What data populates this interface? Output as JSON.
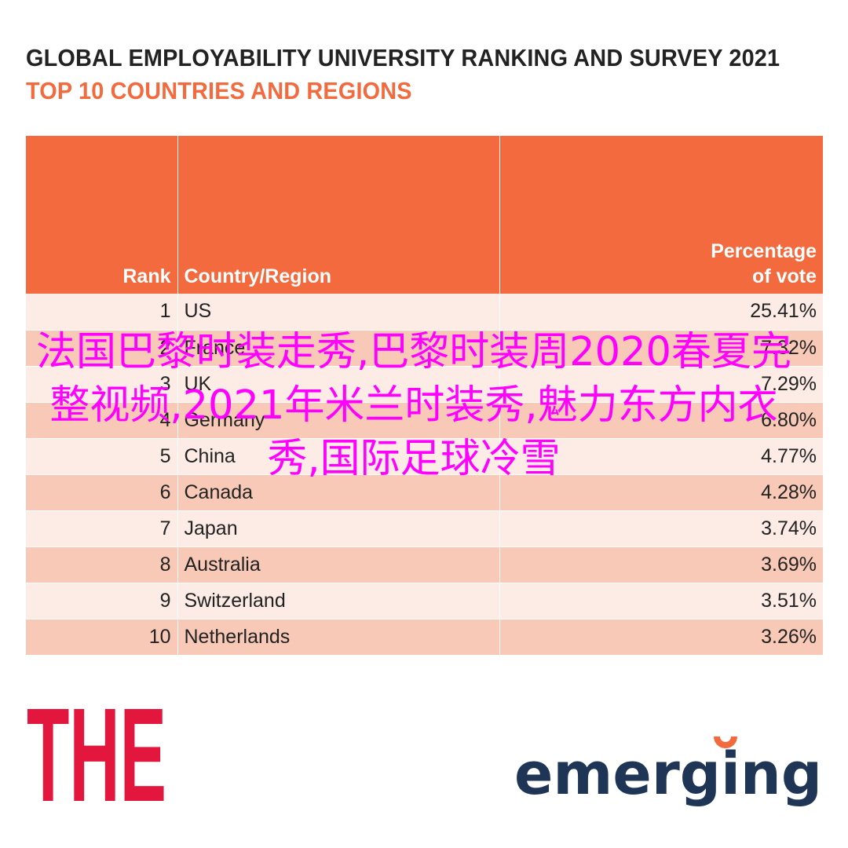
{
  "chart_data": {
    "type": "table",
    "title": "GLOBAL EMPLOYABILITY UNIVERSITY RANKING AND SURVEY 2021",
    "subtitle": "TOP 10 COUNTRIES AND REGIONS",
    "columns": [
      "Rank",
      "Country/Region",
      "Percentage of vote"
    ],
    "rows": [
      {
        "rank": "1",
        "country": "US",
        "pct": "25.41%"
      },
      {
        "rank": "2",
        "country": "France",
        "pct": "7.32%"
      },
      {
        "rank": "3",
        "country": "UK",
        "pct": "7.29%"
      },
      {
        "rank": "4",
        "country": "Germany",
        "pct": "6.80%"
      },
      {
        "rank": "5",
        "country": "China",
        "pct": "4.77%"
      },
      {
        "rank": "6",
        "country": "Canada",
        "pct": "4.28%"
      },
      {
        "rank": "7",
        "country": "Japan",
        "pct": "3.74%"
      },
      {
        "rank": "8",
        "country": "Australia",
        "pct": "3.69%"
      },
      {
        "rank": "9",
        "country": "Switzerland",
        "pct": "3.51%"
      },
      {
        "rank": "10",
        "country": "Netherlands",
        "pct": "3.26%"
      }
    ]
  },
  "overlay_text": "法国巴黎时装走秀,巴黎时装周2020春夏完整视频,2021年米兰时装秀,魅力东方内衣秀,国际足球冷雪",
  "logos": {
    "the": {
      "text": "THE",
      "color": "#e3173e",
      "icon": "the-logo-icon"
    },
    "emerging": {
      "text": "emerging",
      "color": "#1e3556",
      "accent": "#f26a3d",
      "icon": "emerging-logo-icon"
    }
  },
  "colors": {
    "header_bg": "#f26a3d",
    "row_light": "#fcece5",
    "row_dark": "#f7c9b6",
    "overlay": "#ff00ff"
  }
}
